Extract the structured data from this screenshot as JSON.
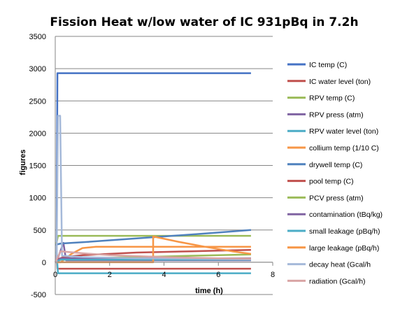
{
  "chart_data": {
    "type": "line",
    "title": "Fission Heat w/low water of IC   931pBq in 7.2h",
    "xlabel": "time (h)",
    "ylabel": "figures",
    "xlim": [
      0,
      8
    ],
    "ylim": [
      -500,
      3500
    ],
    "x_ticks": [
      "0",
      "2",
      "4",
      "6",
      "8"
    ],
    "y_ticks": [
      "-500",
      "0",
      "500",
      "1000",
      "1500",
      "2000",
      "2500",
      "3000",
      "3500"
    ],
    "grid": "horizontal",
    "legend": "right",
    "series": [
      {
        "name": "IC temp (C)",
        "color": "#4472C4",
        "x": [
          0,
          0.05,
          0.08,
          7.2
        ],
        "y": [
          0,
          0,
          2930,
          2930
        ]
      },
      {
        "name": "IC water level (ton)",
        "color": "#C0504D",
        "x": [
          0,
          0.05,
          0.08,
          7.2
        ],
        "y": [
          100,
          100,
          -100,
          -100
        ]
      },
      {
        "name": "RPV temp (C)",
        "color": "#9BBB59",
        "x": [
          0,
          0.05,
          0.1,
          7.2
        ],
        "y": [
          300,
          300,
          410,
          410
        ]
      },
      {
        "name": "RPV press (atm)",
        "color": "#8064A2",
        "x": [
          0,
          0.1,
          0.3,
          0.4,
          1.0,
          7.2
        ],
        "y": [
          70,
          70,
          300,
          30,
          30,
          30
        ]
      },
      {
        "name": "RPV water level (ton)",
        "color": "#4BACC6",
        "x": [
          0,
          0.05,
          0.1,
          7.2
        ],
        "y": [
          150,
          150,
          -170,
          -170
        ]
      },
      {
        "name": "collium temp (1/10 C)",
        "color": "#F79646",
        "x": [
          0,
          0.2,
          0.6,
          1.0,
          1.5,
          2.5,
          7.2
        ],
        "y": [
          0,
          0,
          130,
          220,
          240,
          240,
          240
        ]
      },
      {
        "name": "drywell temp (C)",
        "color": "#4F81BD",
        "x": [
          0,
          0.2,
          1.0,
          2.0,
          3.0,
          4.0,
          5.0,
          6.0,
          7.2
        ],
        "y": [
          270,
          290,
          310,
          340,
          370,
          400,
          430,
          460,
          500
        ]
      },
      {
        "name": "pool temp (C)",
        "color": "#C0504D",
        "x": [
          0,
          0.3,
          1.0,
          2.0,
          3.0,
          4.0,
          5.0,
          6.0,
          7.2
        ],
        "y": [
          30,
          80,
          110,
          130,
          150,
          160,
          170,
          180,
          190
        ]
      },
      {
        "name": "PCV press (atm)",
        "color": "#9BBB59",
        "x": [
          0,
          0.3,
          1.0,
          2.0,
          3.0,
          4.0,
          5.0,
          6.0,
          7.2
        ],
        "y": [
          20,
          50,
          60,
          70,
          80,
          90,
          100,
          110,
          120
        ]
      },
      {
        "name": "contamination (tBq/kg)",
        "color": "#8064A2",
        "x": [
          0,
          0.2,
          3.6,
          7.2
        ],
        "y": [
          0,
          60,
          60,
          60
        ]
      },
      {
        "name": "small leakage (pBq/h)",
        "color": "#4BACC6",
        "x": [
          0,
          0.2,
          7.2
        ],
        "y": [
          0,
          40,
          40
        ]
      },
      {
        "name": "large leakage (pBq/h)",
        "color": "#F79646",
        "x": [
          0,
          3.6,
          3.6,
          4.5,
          5.5,
          6.5,
          7.2
        ],
        "y": [
          0,
          0,
          400,
          320,
          240,
          170,
          130
        ]
      },
      {
        "name": "decay heat (Gcal/h",
        "color": "#A5B9D9",
        "x": [
          0,
          0.05,
          0.1,
          0.18,
          0.25,
          1.0,
          3.0,
          7.2
        ],
        "y": [
          0,
          0,
          2270,
          2270,
          100,
          80,
          60,
          45
        ]
      },
      {
        "name": "radiation (Gcal/h)",
        "color": "#D9A5A5",
        "x": [
          0,
          0.2,
          1.0,
          2.0,
          4.0,
          6.0,
          7.2
        ],
        "y": [
          0,
          170,
          140,
          110,
          80,
          60,
          55
        ]
      }
    ]
  }
}
